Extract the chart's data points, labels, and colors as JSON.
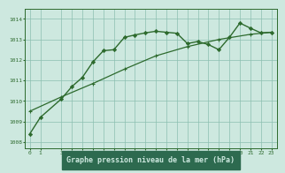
{
  "line1_x": [
    0,
    1,
    3,
    4,
    5,
    6,
    7,
    8,
    9,
    10,
    11,
    12,
    13,
    14,
    15,
    16,
    17,
    18,
    19,
    20,
    21,
    22,
    23
  ],
  "line1_y": [
    1008.4,
    1009.2,
    1010.1,
    1010.7,
    1011.15,
    1011.9,
    1012.45,
    1012.5,
    1013.1,
    1013.22,
    1013.32,
    1013.4,
    1013.35,
    1013.3,
    1012.8,
    1012.9,
    1012.75,
    1012.5,
    1013.1,
    1013.8,
    1013.55,
    1013.32,
    1013.35
  ],
  "line2_x": [
    0,
    3,
    6,
    9,
    12,
    15,
    18,
    21,
    23
  ],
  "line2_y": [
    1009.5,
    1010.2,
    1010.85,
    1011.55,
    1012.2,
    1012.65,
    1013.0,
    1013.25,
    1013.35
  ],
  "line_color": "#2d6a2d",
  "bg_color": "#cde8df",
  "grid_color": "#8bbfb0",
  "xlabel": "Graphe pression niveau de la mer (hPa)",
  "xlabel_bg": "#2d6a4f",
  "xlabel_fg": "#cde8df",
  "xticks": [
    0,
    1,
    3,
    4,
    5,
    6,
    7,
    8,
    9,
    10,
    11,
    12,
    13,
    14,
    15,
    16,
    17,
    18,
    19,
    20,
    21,
    22,
    23
  ],
  "yticks": [
    1008,
    1009,
    1010,
    1011,
    1012,
    1013,
    1014
  ],
  "ylim": [
    1007.7,
    1014.5
  ],
  "xlim": [
    -0.5,
    23.5
  ]
}
